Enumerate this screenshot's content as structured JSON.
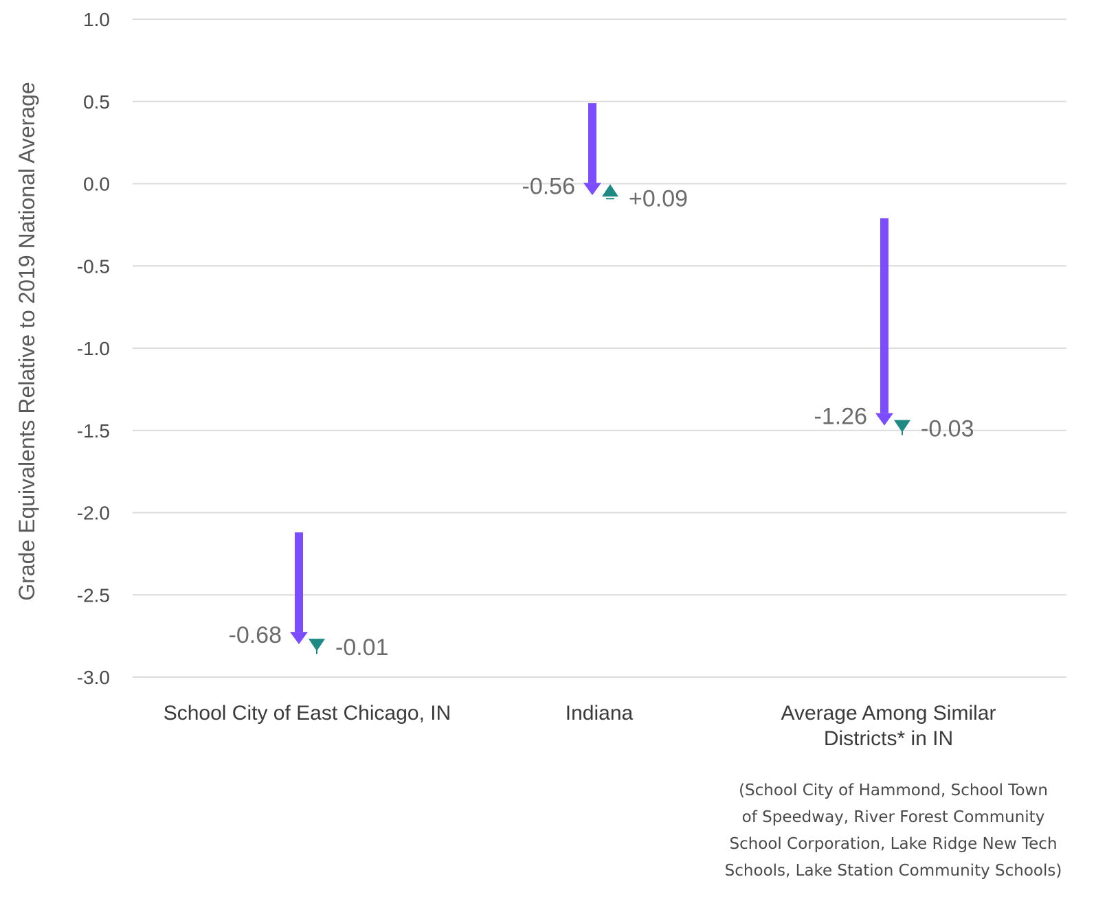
{
  "chart_data": {
    "type": "arrow",
    "ylabel": "Grade Equivalents Relative to 2019 National Average",
    "ylim": [
      -3.0,
      1.0
    ],
    "yticks": [
      1.0,
      0.5,
      0.0,
      -0.5,
      -1.0,
      -1.5,
      -2.0,
      -2.5,
      -3.0
    ],
    "ytick_labels": [
      "1.0",
      "0.5",
      "0.0",
      "-0.5",
      "-1.0",
      "-1.5",
      "-2.0",
      "-2.5",
      "-3.0"
    ],
    "grid": true,
    "categories": [
      {
        "lines": [
          "School City of East Chicago, IN"
        ],
        "start": -2.12,
        "decline": -0.68,
        "decline_label": "-0.68",
        "change": -0.01,
        "change_label": "-0.01"
      },
      {
        "lines": [
          "Indiana"
        ],
        "start": 0.49,
        "decline": -0.56,
        "decline_label": "-0.56",
        "change": 0.09,
        "change_label": "+0.09"
      },
      {
        "lines": [
          "Average Among Similar",
          "Districts* in IN"
        ],
        "start": -0.21,
        "decline": -1.26,
        "decline_label": "-1.26",
        "change": -0.03,
        "change_label": "-0.03"
      }
    ],
    "note_lines": [
      "(School City of Hammond, School Town",
      "of Speedway, River Forest Community",
      "School Corporation, Lake Ridge New Tech",
      "Schools, Lake Station Community Schools)"
    ],
    "colors": {
      "decline": "#7b4dff",
      "change": "#1f8a84",
      "grid": "#dcdcdc"
    }
  }
}
